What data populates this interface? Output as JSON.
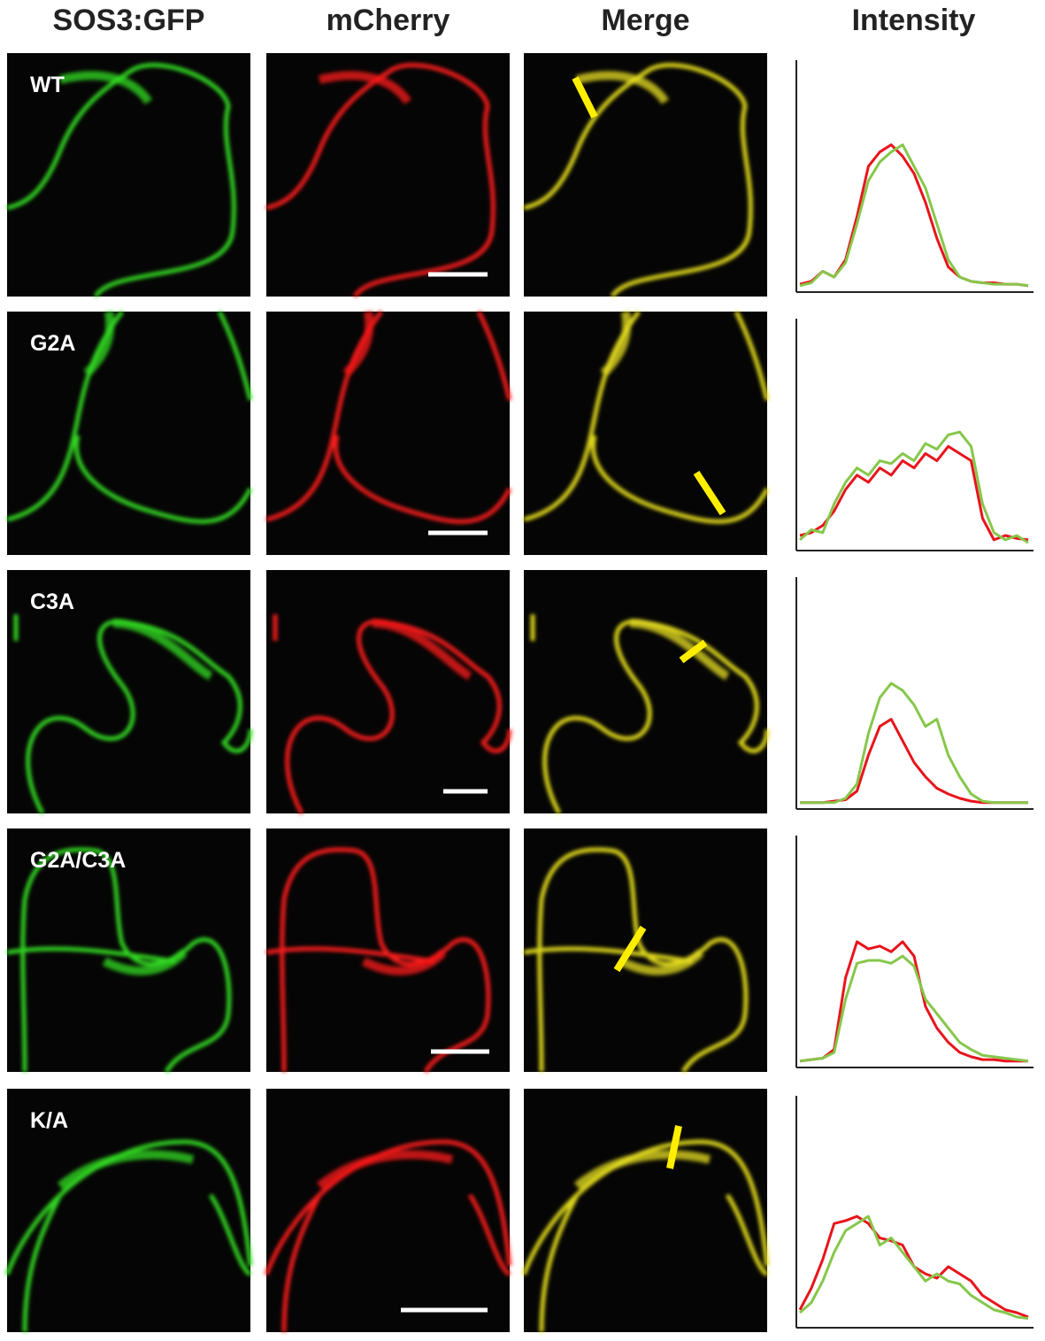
{
  "headers": [
    "SOS3:GFP",
    "mCherry",
    "Merge",
    "Intensity"
  ],
  "rows": [
    {
      "label": "WT",
      "intensity": [
        {
          "color": "#e8141c",
          "values": [
            3,
            5,
            12,
            8,
            20,
            50,
            85,
            95,
            100,
            92,
            80,
            60,
            35,
            15,
            8,
            5,
            4,
            4,
            3,
            3,
            2
          ]
        },
        {
          "color": "#86c74a",
          "values": [
            2,
            4,
            12,
            8,
            18,
            45,
            75,
            88,
            95,
            100,
            85,
            70,
            45,
            20,
            8,
            5,
            4,
            3,
            3,
            3,
            2
          ]
        }
      ]
    },
    {
      "label": "G2A",
      "intensity": [
        {
          "color": "#e8141c",
          "values": [
            8,
            10,
            15,
            25,
            40,
            50,
            45,
            55,
            50,
            60,
            55,
            65,
            60,
            70,
            65,
            60,
            20,
            5,
            8,
            6,
            5
          ]
        },
        {
          "color": "#86c74a",
          "values": [
            5,
            12,
            10,
            30,
            45,
            55,
            50,
            60,
            58,
            65,
            60,
            72,
            68,
            78,
            80,
            70,
            30,
            10,
            5,
            8,
            3
          ]
        }
      ]
    },
    {
      "label": "C3A",
      "intensity": [
        {
          "color": "#e8141c",
          "values": [
            2,
            2,
            2,
            3,
            4,
            10,
            35,
            55,
            60,
            45,
            30,
            20,
            12,
            8,
            5,
            3,
            2,
            2,
            2,
            2,
            2
          ]
        },
        {
          "color": "#86c74a",
          "values": [
            2,
            2,
            2,
            2,
            5,
            15,
            50,
            75,
            85,
            80,
            70,
            55,
            60,
            35,
            20,
            8,
            3,
            2,
            2,
            2,
            2
          ]
        }
      ]
    },
    {
      "label": "G2A/C3A",
      "intensity": [
        {
          "color": "#e8141c",
          "values": [
            2,
            3,
            4,
            10,
            60,
            85,
            80,
            82,
            78,
            85,
            75,
            40,
            25,
            15,
            8,
            5,
            3,
            3,
            2,
            2,
            2
          ]
        },
        {
          "color": "#86c74a",
          "values": [
            2,
            3,
            4,
            8,
            45,
            70,
            72,
            72,
            70,
            75,
            68,
            45,
            35,
            25,
            15,
            10,
            6,
            5,
            4,
            3,
            2
          ]
        }
      ]
    },
    {
      "label": "K/A",
      "intensity": [
        {
          "color": "#e8141c",
          "values": [
            10,
            25,
            45,
            70,
            72,
            75,
            70,
            60,
            58,
            55,
            40,
            35,
            32,
            40,
            35,
            30,
            20,
            15,
            10,
            8,
            5
          ]
        },
        {
          "color": "#86c74a",
          "values": [
            8,
            15,
            30,
            50,
            65,
            70,
            75,
            55,
            60,
            50,
            40,
            30,
            35,
            30,
            28,
            20,
            15,
            10,
            8,
            5,
            4
          ]
        }
      ]
    }
  ]
}
